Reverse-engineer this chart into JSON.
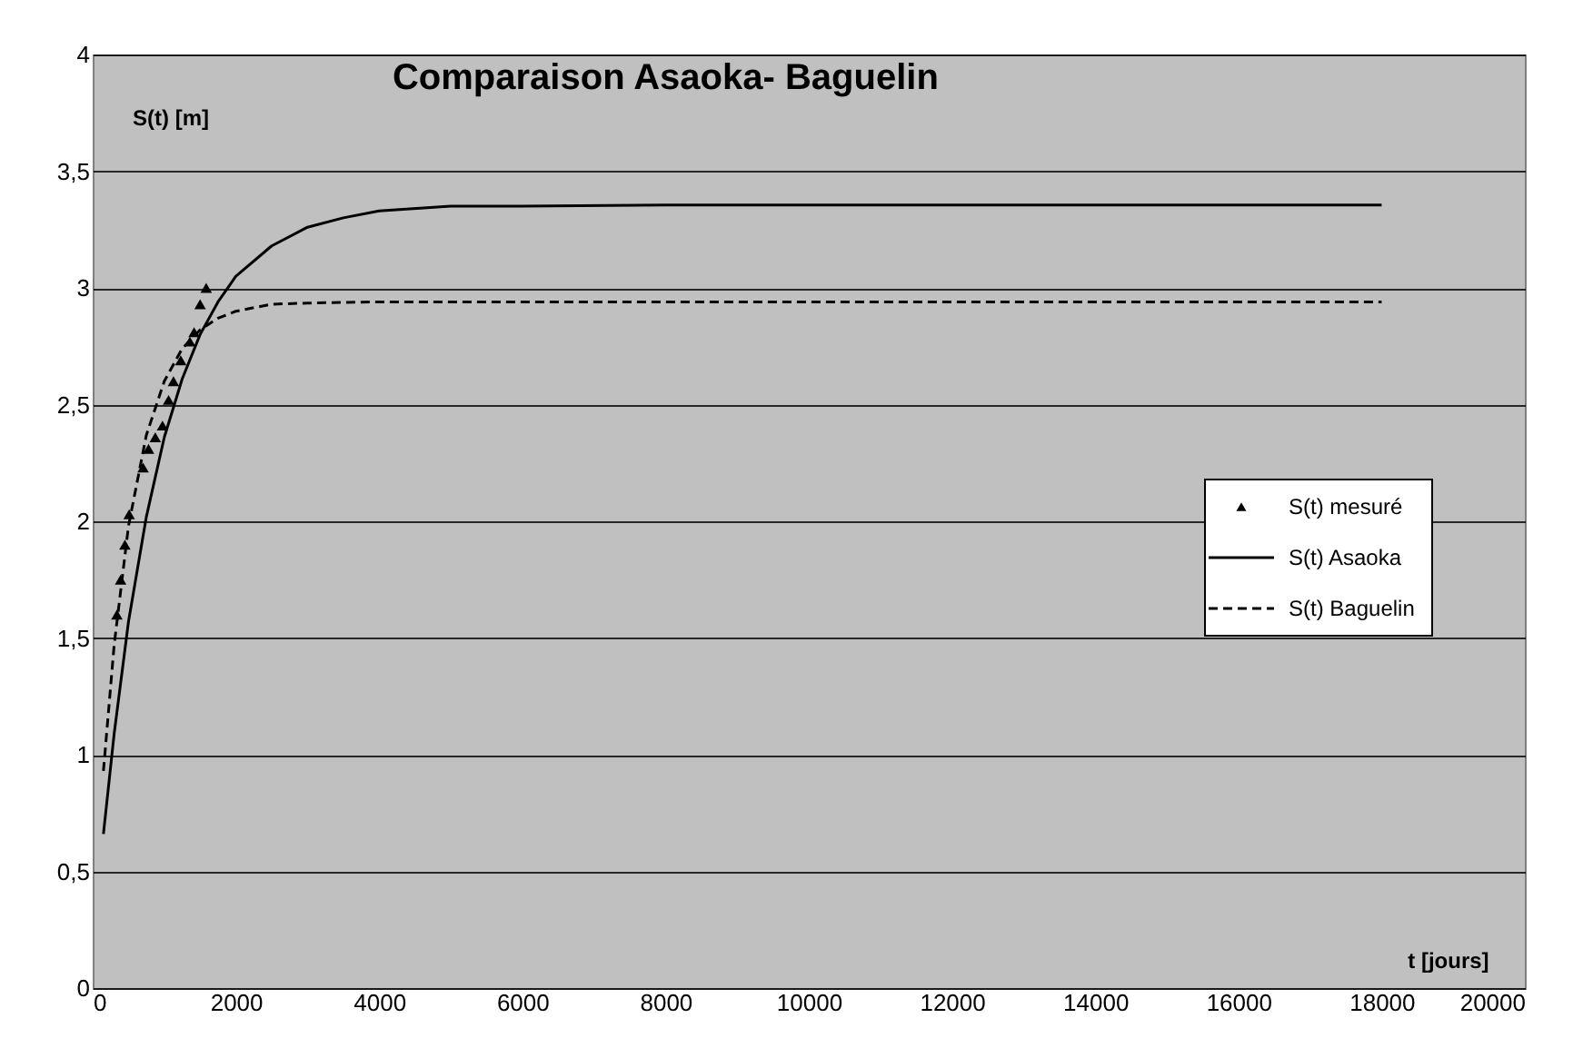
{
  "chart_data": {
    "type": "line",
    "title": "Comparaison Asaoka- Baguelin",
    "xlabel": "t [jours]",
    "ylabel": "S(t) [m]",
    "xlim": [
      0,
      20000
    ],
    "xticks": [
      0,
      2000,
      4000,
      6000,
      8000,
      10000,
      12000,
      14000,
      16000,
      18000,
      20000
    ],
    "ylim": [
      0,
      4
    ],
    "yticks": [
      0,
      {
        "value": 0.5,
        "label": "0,5"
      },
      1,
      {
        "value": 1.5,
        "label": "1,5"
      },
      2,
      {
        "value": 2.5,
        "label": "2,5"
      },
      3,
      {
        "value": 3.5,
        "label": "3,5"
      },
      4
    ],
    "grid": "y",
    "legend": "right",
    "series": [
      {
        "name": "S(t) mesuré",
        "type": "scatter",
        "marker": "triangle",
        "color": "#000000",
        "x": [
          338,
          390,
          450,
          509,
          704,
          780,
          874,
          975,
          1060,
          1128,
          1230,
          1357,
          1416,
          1500,
          1585
        ],
        "values": [
          1.6,
          1.75,
          1.9,
          2.03,
          2.23,
          2.31,
          2.36,
          2.41,
          2.52,
          2.6,
          2.69,
          2.77,
          2.81,
          2.93,
          3.0
        ]
      },
      {
        "name": "S(t) Asaoka",
        "line_style": "solid",
        "color": "#000000",
        "x": [
          150,
          300,
          500,
          750,
          1000,
          1250,
          1500,
          1750,
          2000,
          2500,
          3000,
          3500,
          4000,
          5000,
          6000,
          8000,
          10000,
          14000,
          18000
        ],
        "values": [
          0.66,
          1.09,
          1.57,
          2.02,
          2.36,
          2.61,
          2.8,
          2.94,
          3.05,
          3.18,
          3.26,
          3.3,
          3.33,
          3.35,
          3.35,
          3.355,
          3.355,
          3.355,
          3.355
        ]
      },
      {
        "name": "S(t) Baguelin",
        "line_style": "dashed",
        "color": "#000000",
        "x": [
          150,
          300,
          500,
          750,
          1000,
          1250,
          1500,
          1750,
          2000,
          2500,
          3000,
          4000,
          6000,
          10000,
          14000,
          18000
        ],
        "values": [
          0.93,
          1.47,
          1.98,
          2.37,
          2.6,
          2.74,
          2.82,
          2.87,
          2.9,
          2.93,
          2.935,
          2.94,
          2.94,
          2.94,
          2.94,
          2.94
        ]
      }
    ]
  }
}
